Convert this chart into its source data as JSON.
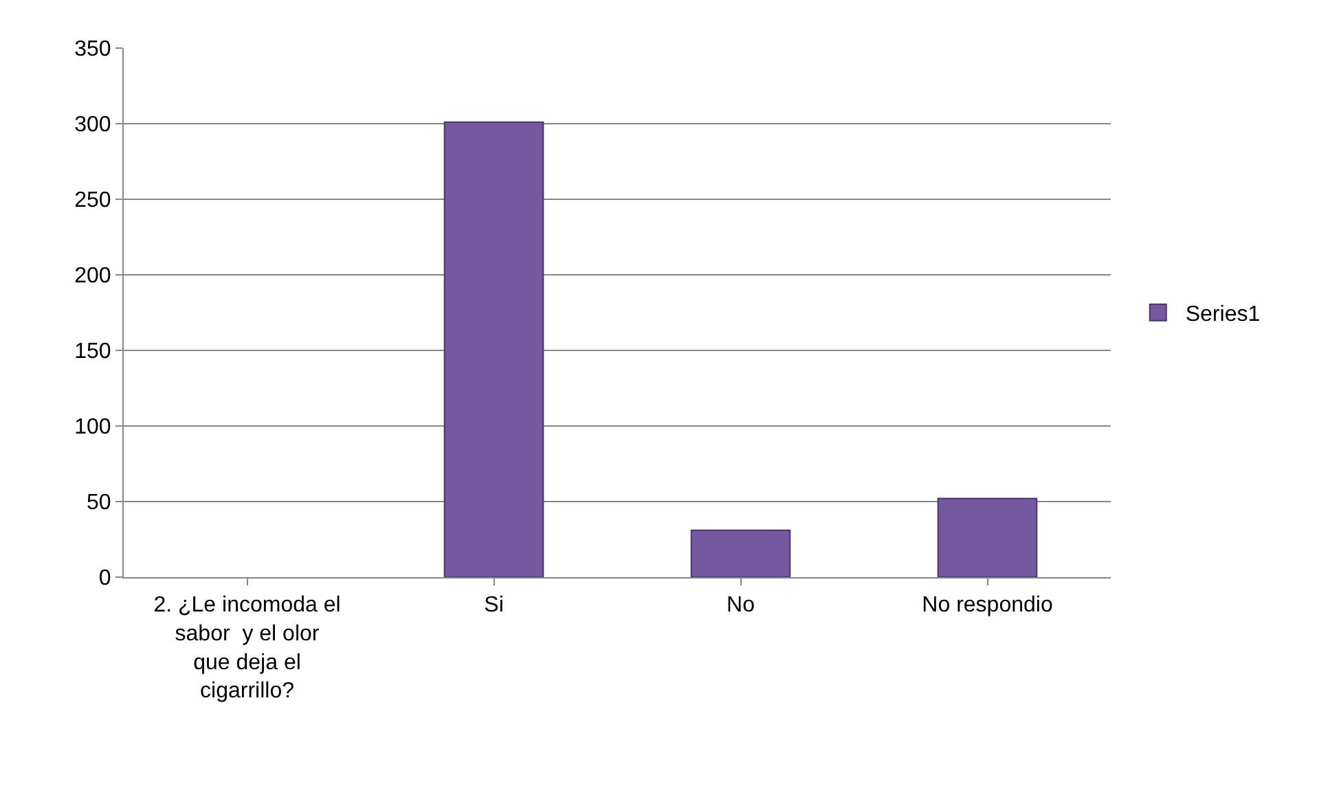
{
  "chart_data": {
    "type": "bar",
    "categories": [
      "2. ¿Le incomoda el sabor  y el olor que deja el cigarrillo?",
      "Si",
      "No",
      "No respondio"
    ],
    "series": [
      {
        "name": "Series1",
        "color": "#7458a0",
        "values": [
          null,
          301,
          31,
          52
        ]
      }
    ],
    "ylim": [
      0,
      350
    ],
    "yticks": [
      0,
      50,
      100,
      150,
      200,
      250,
      300,
      350
    ],
    "grid": "y",
    "legend": "right"
  }
}
